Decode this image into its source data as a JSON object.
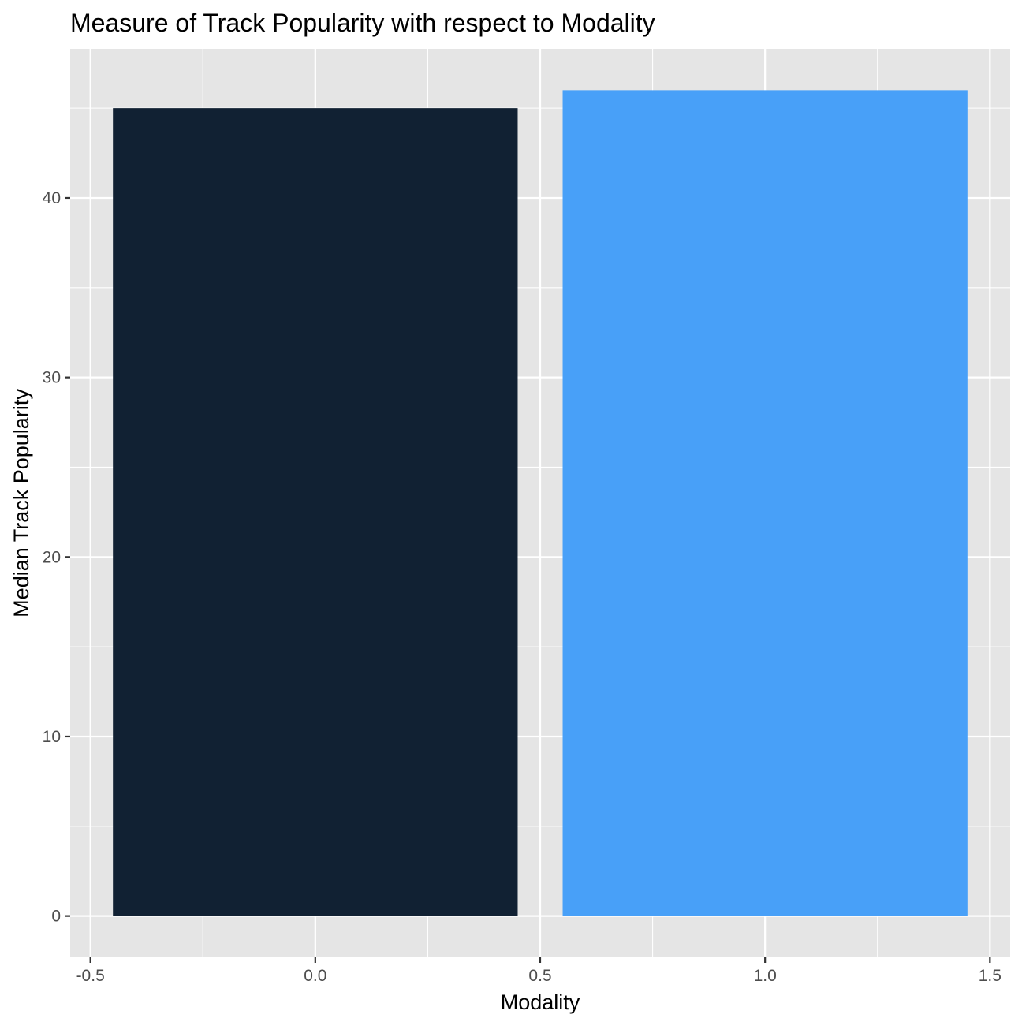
{
  "chart_data": {
    "type": "bar",
    "title": "Measure of Track Popularity with respect to Modality",
    "xlabel": "Modality",
    "ylabel": "Median Track Popularity",
    "x": [
      0,
      1
    ],
    "values": [
      45,
      46
    ],
    "bar_colors": [
      "#112133",
      "#48A0F8"
    ],
    "xlim": [
      -0.545,
      1.545
    ],
    "ylim": [
      -2.3,
      48.3
    ],
    "xticks": [
      -0.5,
      0.0,
      0.5,
      1.0,
      1.5
    ],
    "xtick_labels": [
      "-0.5",
      "0.0",
      "0.5",
      "1.0",
      "1.5"
    ],
    "yticks": [
      0,
      10,
      20,
      30,
      40
    ],
    "ytick_labels": [
      "0",
      "10",
      "20",
      "30",
      "40"
    ],
    "bar_width": 0.9,
    "grid": true,
    "panel_background": "#E5E5E5",
    "grid_color": "#FFFFFF"
  }
}
